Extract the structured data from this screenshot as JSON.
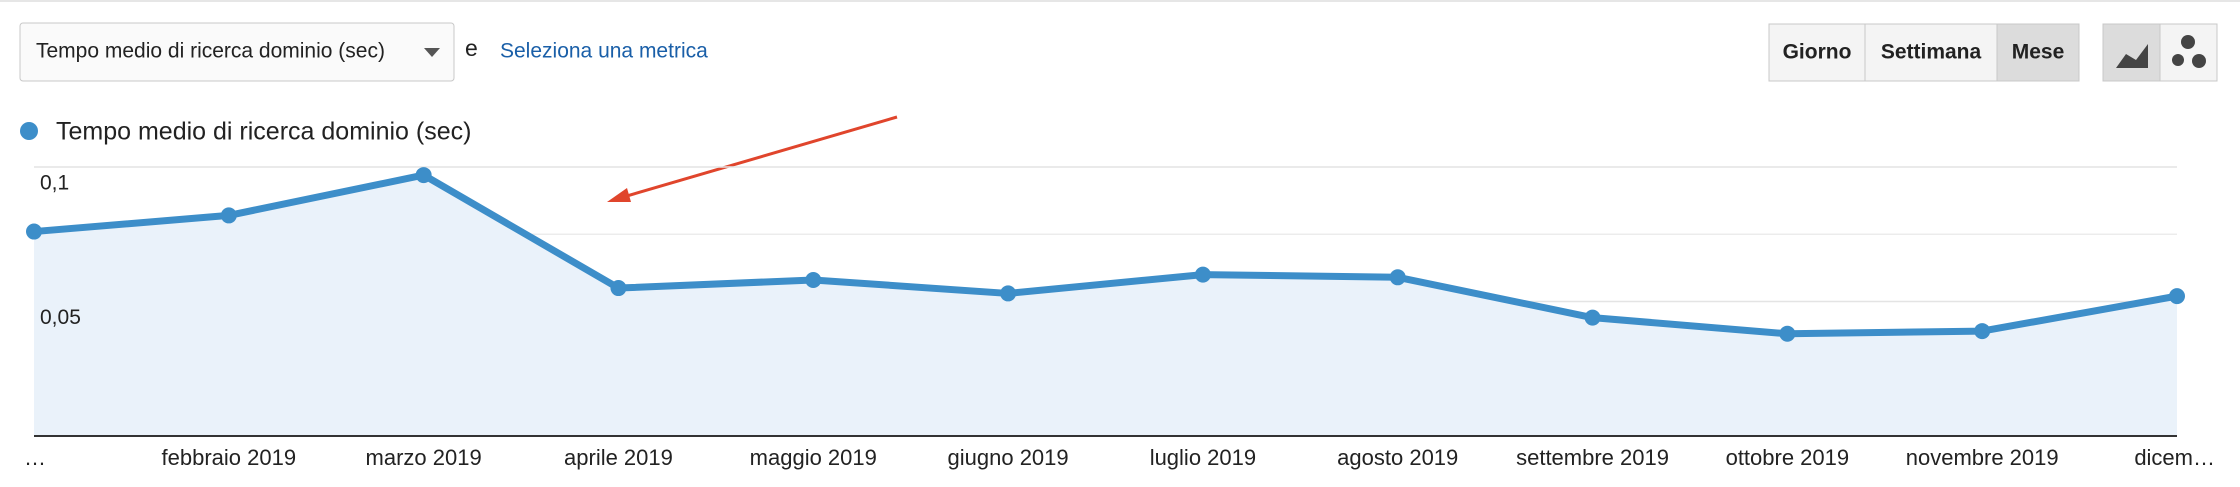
{
  "toolbar": {
    "metric": "Tempo medio di ricerca dominio (sec)",
    "joiner": "e",
    "add_metric": "Seleziona una metrica",
    "periods": [
      "Giorno",
      "Settimana",
      "Mese"
    ]
  },
  "chart_data": {
    "type": "line",
    "categories": [
      "…",
      "febbraio 2019",
      "marzo 2019",
      "aprile 2019",
      "maggio 2019",
      "giugno 2019",
      "luglio 2019",
      "agosto 2019",
      "settembre 2019",
      "ottobre 2019",
      "novembre 2019",
      "dicem…"
    ],
    "series": [
      {
        "name": "Tempo medio di ricerca dominio (sec)",
        "color": "#3d8ec9",
        "values": [
          0.076,
          0.082,
          0.097,
          0.055,
          0.058,
          0.053,
          0.06,
          0.059,
          0.044,
          0.038,
          0.039,
          0.052
        ]
      }
    ],
    "ylim": [
      0,
      0.1
    ],
    "yticks": [
      {
        "value": 0.05,
        "label": "0,05"
      },
      {
        "value": 0.1,
        "label": "0,1"
      }
    ],
    "grid_lines": [
      0.025,
      0.075
    ],
    "area_fill": "#eaf2fa",
    "grid": true
  }
}
